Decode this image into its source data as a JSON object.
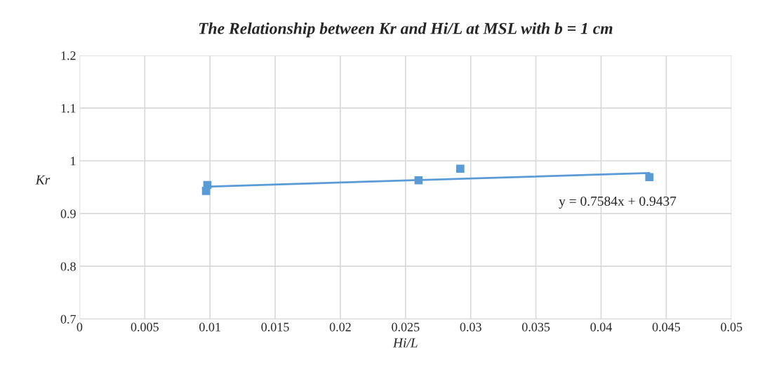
{
  "chart_data": {
    "type": "scatter",
    "title": "The Relationship between Kr and Hi/L at MSL with b = 1 cm",
    "xlabel": "Hi/L",
    "ylabel": "Kr",
    "x": [
      0.0097,
      0.0098,
      0.026,
      0.0292,
      0.0437
    ],
    "series": [
      {
        "color": "#5b9bd5",
        "marker": "square",
        "values": [
          0.943,
          0.954,
          0.963,
          0.985,
          0.969
        ]
      },
      {
        "type": "line",
        "color": "#5b9bd5",
        "x": [
          0.0097,
          0.0437
        ],
        "values": [
          0.951,
          0.977
        ]
      }
    ],
    "xlim": [
      0,
      0.05
    ],
    "xticks": [
      0,
      0.005,
      0.01,
      0.015,
      0.02,
      0.025,
      0.03,
      0.035,
      0.04,
      0.045,
      0.05
    ],
    "ylim": [
      0.7,
      1.2
    ],
    "yticks": [
      0.7,
      0.8,
      0.9,
      1,
      1.1,
      1.2
    ],
    "grid": true,
    "legend": false,
    "annotations": [
      "y = 0.7584x + 0.9437"
    ]
  }
}
